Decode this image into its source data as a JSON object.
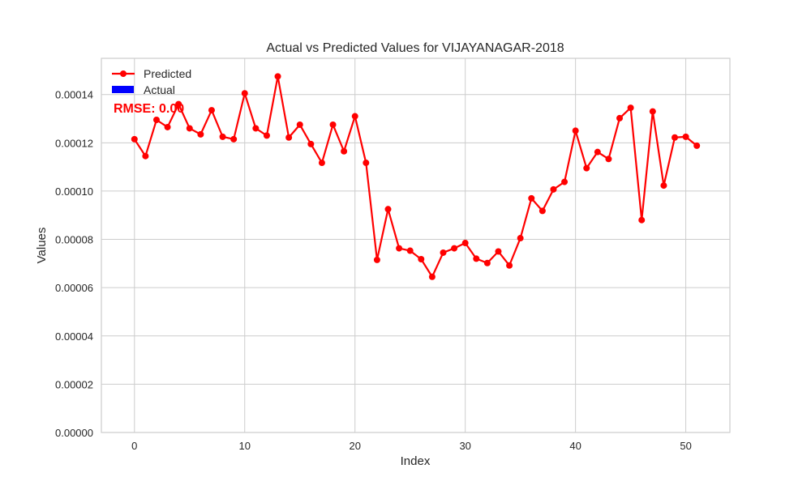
{
  "chart_data": {
    "type": "line",
    "title": "Actual vs Predicted Values for VIJAYANAGAR-2018",
    "xlabel": "Index",
    "ylabel": "Values",
    "xlim": [
      -3,
      54
    ],
    "ylim": [
      0,
      0.000155
    ],
    "xticks": [
      0,
      10,
      20,
      30,
      40,
      50
    ],
    "xtick_labels": [
      "0",
      "10",
      "20",
      "30",
      "40",
      "50"
    ],
    "yticks": [
      0,
      2e-05,
      4e-05,
      6e-05,
      8e-05,
      0.0001,
      0.00012,
      0.00014
    ],
    "ytick_labels": [
      "0.00000",
      "0.00002",
      "0.00004",
      "0.00006",
      "0.00008",
      "0.00010",
      "0.00012",
      "0.00014"
    ],
    "grid": true,
    "legend_position": "top-left",
    "annotation": "RMSE: 0.00",
    "series": [
      {
        "name": "Predicted",
        "kind": "line-marker",
        "color": "#ff0000",
        "x": [
          0,
          1,
          2,
          3,
          4,
          5,
          6,
          7,
          8,
          9,
          10,
          11,
          12,
          13,
          14,
          15,
          16,
          17,
          18,
          19,
          20,
          21,
          22,
          23,
          24,
          25,
          26,
          27,
          28,
          29,
          30,
          31,
          32,
          33,
          34,
          35,
          36,
          37,
          38,
          39,
          40,
          41,
          42,
          43,
          44,
          45,
          46,
          47,
          48,
          49,
          50,
          51
        ],
        "values": [
          0.0001215,
          0.0001145,
          0.0001295,
          0.0001265,
          0.000136,
          0.000126,
          0.0001235,
          0.0001335,
          0.0001225,
          0.0001215,
          0.0001405,
          0.000126,
          0.000123,
          0.0001475,
          0.0001222,
          0.0001275,
          0.0001195,
          0.0001117,
          0.0001275,
          0.0001165,
          0.000131,
          0.0001117,
          7.15e-05,
          9.25e-05,
          7.63e-05,
          7.53e-05,
          7.18e-05,
          6.45e-05,
          7.45e-05,
          7.63e-05,
          7.85e-05,
          7.2e-05,
          7.02e-05,
          7.5e-05,
          6.92e-05,
          8.05e-05,
          9.7e-05,
          9.18e-05,
          0.0001007,
          0.0001038,
          0.000125,
          0.0001095,
          0.0001162,
          0.0001133,
          0.0001302,
          0.0001345,
          8.8e-05,
          0.000133,
          0.0001023,
          0.0001222,
          0.0001225,
          0.0001188
        ]
      },
      {
        "name": "Actual",
        "kind": "bar",
        "color": "#0000ff",
        "values": []
      }
    ]
  }
}
